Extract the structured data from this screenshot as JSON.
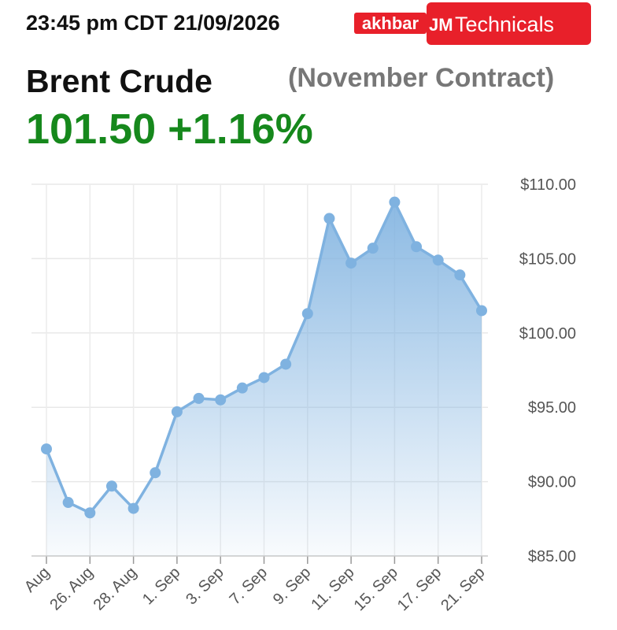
{
  "header": {
    "timestamp": "23:45 pm CDT 21/09/2026",
    "logo_left": "akhbar",
    "logo_mark": "JM",
    "logo_right": "Technicals"
  },
  "chart_data": {
    "type": "area",
    "title": "Brent Crude",
    "subtitle": "(November Contract)",
    "price": "101.50 +1.16%",
    "categories": [
      "Aug",
      null,
      "26. Aug",
      null,
      "28. Aug",
      null,
      "1. Sep",
      null,
      "3. Sep",
      null,
      "7. Sep",
      null,
      "9. Sep",
      null,
      "11. Sep",
      null,
      "15. Sep",
      null,
      "17. Sep",
      null,
      "21. Sep"
    ],
    "series": [
      {
        "name": "Brent Crude",
        "color": "#7fb2e0",
        "values": [
          92.2,
          88.6,
          87.9,
          89.7,
          88.2,
          90.6,
          94.7,
          95.6,
          95.5,
          96.3,
          97.0,
          97.9,
          101.3,
          107.7,
          104.7,
          105.7,
          108.8,
          105.8,
          104.9,
          103.9,
          101.5
        ]
      }
    ],
    "ylim": [
      85,
      110
    ],
    "yticks": [
      {
        "value": 85,
        "label": "$85.00"
      },
      {
        "value": 90,
        "label": "$90.00"
      },
      {
        "value": 95,
        "label": "$95.00"
      },
      {
        "value": 100,
        "label": "$100.00"
      },
      {
        "value": 105,
        "label": "$105.00"
      },
      {
        "value": 110,
        "label": "$110.00"
      }
    ],
    "grid": true
  }
}
